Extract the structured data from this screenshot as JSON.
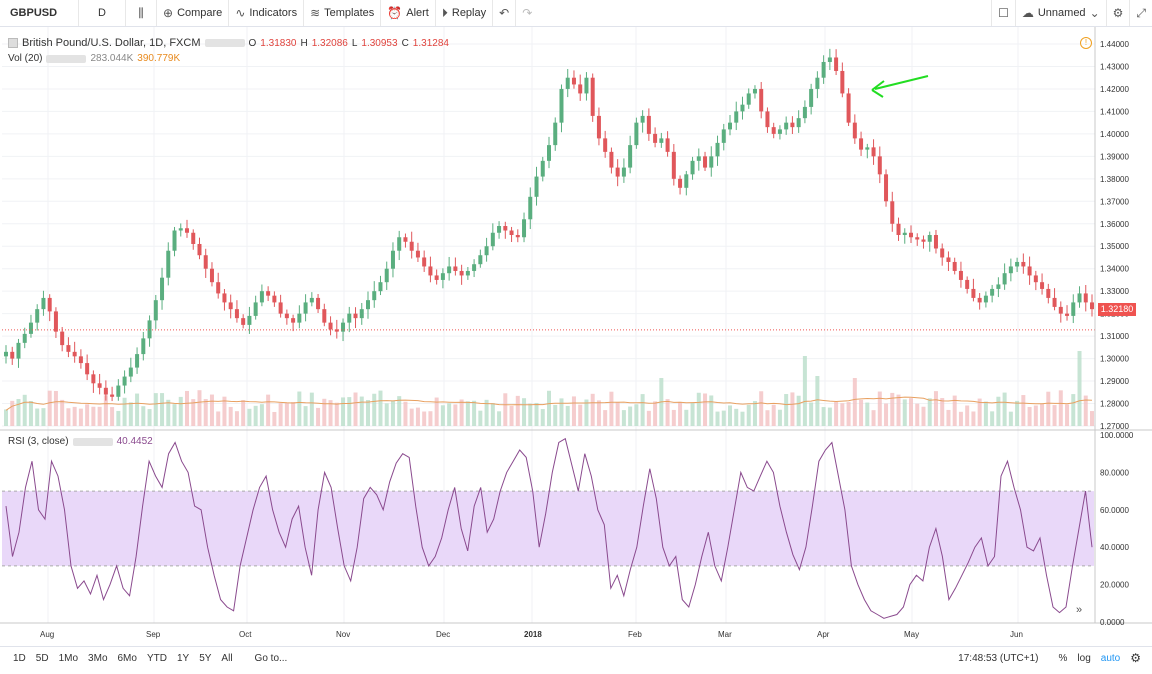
{
  "toolbar": {
    "symbol": "GBPUSD",
    "interval": "D",
    "compare": "Compare",
    "indicators": "Indicators",
    "templates": "Templates",
    "alert": "Alert",
    "replay": "Replay",
    "layout_name": "Unnamed"
  },
  "legend": {
    "title": "British Pound/U.S. Dollar, 1D, FXCM",
    "open_label": "O",
    "open": "1.31830",
    "high_label": "H",
    "high": "1.32086",
    "low_label": "L",
    "low": "1.30953",
    "close_label": "C",
    "close": "1.31284",
    "volume_name": "Vol (20)",
    "volume_value": "283.044K",
    "volume_ma": "390.779K",
    "rsi_name": "RSI (3, close)",
    "rsi_value": "40.4452"
  },
  "last_price_label": "1.32180",
  "bottombar": {
    "ranges": [
      "1D",
      "5D",
      "1Mo",
      "3Mo",
      "6Mo",
      "YTD",
      "1Y",
      "5Y",
      "All"
    ],
    "goto": "Go to...",
    "time": "17:48:53 (UTC+1)",
    "percent": "%",
    "log": "log",
    "auto": "auto"
  },
  "colors": {
    "up": "#5aae7f",
    "down": "#e0575b",
    "rsi_line": "#8a4a8e",
    "rsi_band": "#e9d8f9",
    "volume_ma": "#e8a060",
    "arrow": "#22dd22",
    "last_price": "#ef5350"
  },
  "chart_data": [
    {
      "type": "candlestick",
      "title": "British Pound/U.S. Dollar, 1D, FXCM",
      "ylim": [
        1.27,
        1.44
      ],
      "y_ticks": [
        "1.44000",
        "1.43000",
        "1.42000",
        "1.41000",
        "1.40000",
        "1.39000",
        "1.38000",
        "1.37000",
        "1.36000",
        "1.35000",
        "1.34000",
        "1.33000",
        "1.32000",
        "1.31000",
        "1.30000",
        "1.29000",
        "1.28000",
        "1.27000"
      ],
      "x_ticks": [
        "Aug",
        "Sep",
        "Oct",
        "Nov",
        "Dec",
        "2018",
        "Feb",
        "Mar",
        "Apr",
        "May",
        "Jun"
      ],
      "last_price": 1.3218,
      "close_series_approx": [
        1.303,
        1.3,
        1.307,
        1.311,
        1.316,
        1.322,
        1.327,
        1.321,
        1.312,
        1.306,
        1.303,
        1.301,
        1.298,
        1.293,
        1.289,
        1.287,
        1.284,
        1.283,
        1.288,
        1.292,
        1.296,
        1.302,
        1.309,
        1.317,
        1.326,
        1.336,
        1.348,
        1.357,
        1.358,
        1.356,
        1.351,
        1.346,
        1.34,
        1.334,
        1.329,
        1.325,
        1.322,
        1.318,
        1.315,
        1.319,
        1.325,
        1.33,
        1.328,
        1.325,
        1.32,
        1.318,
        1.316,
        1.32,
        1.325,
        1.327,
        1.322,
        1.316,
        1.313,
        1.312,
        1.316,
        1.32,
        1.318,
        1.322,
        1.326,
        1.33,
        1.334,
        1.34,
        1.348,
        1.354,
        1.352,
        1.348,
        1.345,
        1.341,
        1.337,
        1.335,
        1.338,
        1.341,
        1.339,
        1.337,
        1.339,
        1.342,
        1.346,
        1.35,
        1.356,
        1.359,
        1.357,
        1.355,
        1.354,
        1.362,
        1.372,
        1.381,
        1.388,
        1.395,
        1.405,
        1.42,
        1.425,
        1.422,
        1.418,
        1.425,
        1.408,
        1.398,
        1.392,
        1.385,
        1.381,
        1.385,
        1.395,
        1.405,
        1.408,
        1.4,
        1.396,
        1.398,
        1.392,
        1.38,
        1.376,
        1.382,
        1.388,
        1.39,
        1.385,
        1.39,
        1.396,
        1.402,
        1.405,
        1.41,
        1.413,
        1.418,
        1.42,
        1.41,
        1.403,
        1.4,
        1.402,
        1.405,
        1.403,
        1.407,
        1.412,
        1.42,
        1.425,
        1.432,
        1.434,
        1.428,
        1.418,
        1.405,
        1.398,
        1.393,
        1.394,
        1.39,
        1.382,
        1.37,
        1.36,
        1.355,
        1.356,
        1.354,
        1.353,
        1.352,
        1.355,
        1.349,
        1.345,
        1.343,
        1.339,
        1.335,
        1.331,
        1.327,
        1.325,
        1.328,
        1.331,
        1.333,
        1.338,
        1.341,
        1.343,
        1.341,
        1.337,
        1.334,
        1.331,
        1.327,
        1.323,
        1.32,
        1.319,
        1.325,
        1.329,
        1.325,
        1.322
      ]
    },
    {
      "type": "bar",
      "title": "Vol (20)",
      "series": [
        {
          "name": "Vol (20)",
          "value_last": "283.044K"
        },
        {
          "name": "MA",
          "value_last": "390.779K"
        }
      ]
    },
    {
      "type": "line",
      "title": "RSI (3, close)",
      "ylim": [
        0,
        100
      ],
      "y_ticks": [
        "100.0000",
        "80.0000",
        "60.0000",
        "40.0000",
        "20.0000",
        "0.0000"
      ],
      "band": [
        30,
        70
      ],
      "last_value": 40.4452,
      "values_approx": [
        62,
        35,
        48,
        72,
        86,
        60,
        55,
        86,
        78,
        60,
        30,
        18,
        22,
        15,
        25,
        12,
        20,
        30,
        18,
        14,
        35,
        62,
        86,
        78,
        72,
        90,
        96,
        86,
        80,
        62,
        60,
        40,
        25,
        12,
        8,
        6,
        30,
        45,
        60,
        72,
        78,
        60,
        48,
        40,
        55,
        62,
        40,
        25,
        60,
        80,
        72,
        50,
        30,
        22,
        40,
        66,
        72,
        68,
        60,
        75,
        85,
        90,
        88,
        62,
        40,
        30,
        35,
        45,
        60,
        72,
        50,
        38,
        62,
        72,
        48,
        55,
        70,
        80,
        86,
        92,
        88,
        70,
        40,
        58,
        80,
        96,
        98,
        84,
        70,
        90,
        78,
        60,
        52,
        18,
        25,
        14,
        28,
        40,
        62,
        82,
        66,
        40,
        30,
        35,
        12,
        8,
        20,
        35,
        48,
        30,
        22,
        40,
        60,
        80,
        72,
        70,
        78,
        86,
        80,
        62,
        48,
        36,
        28,
        40,
        62,
        86,
        92,
        96,
        78,
        60,
        30,
        20,
        12,
        6,
        4,
        2,
        3,
        4,
        8,
        20,
        25,
        22,
        40,
        50,
        35,
        12,
        18,
        25,
        32,
        40,
        45,
        30,
        35,
        78,
        86,
        72,
        60,
        40,
        38,
        45,
        25,
        8,
        5,
        8,
        30,
        50,
        70,
        40
      ]
    }
  ]
}
